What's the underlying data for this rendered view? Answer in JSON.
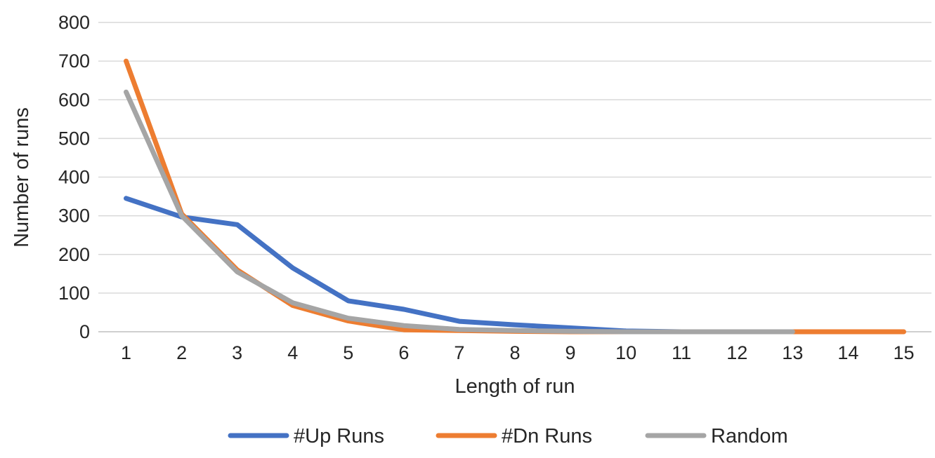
{
  "chart_data": {
    "type": "line",
    "title": "",
    "xlabel": "Length of run",
    "ylabel": "Number of runs",
    "categories": [
      "1",
      "2",
      "3",
      "4",
      "5",
      "6",
      "7",
      "8",
      "9",
      "10",
      "11",
      "12",
      "13",
      "14",
      "15"
    ],
    "ylim": [
      0,
      800
    ],
    "yticks": [
      0,
      100,
      200,
      300,
      400,
      500,
      600,
      700,
      800
    ],
    "grid": true,
    "legend_position": "bottom",
    "series": [
      {
        "name": "#Up Runs",
        "color": "#4472C4",
        "values": [
          345,
          297,
          277,
          165,
          80,
          58,
          27,
          18,
          10,
          2,
          0,
          0,
          0,
          null,
          null
        ]
      },
      {
        "name": "#Dn Runs",
        "color": "#ED7D31",
        "values": [
          700,
          305,
          160,
          68,
          28,
          5,
          3,
          1,
          0,
          0,
          0,
          0,
          0,
          0,
          0
        ]
      },
      {
        "name": "Random",
        "color": "#A5A5A5",
        "values": [
          620,
          300,
          155,
          75,
          35,
          16,
          6,
          3,
          1,
          0,
          0,
          0,
          0,
          null,
          null
        ]
      }
    ]
  }
}
